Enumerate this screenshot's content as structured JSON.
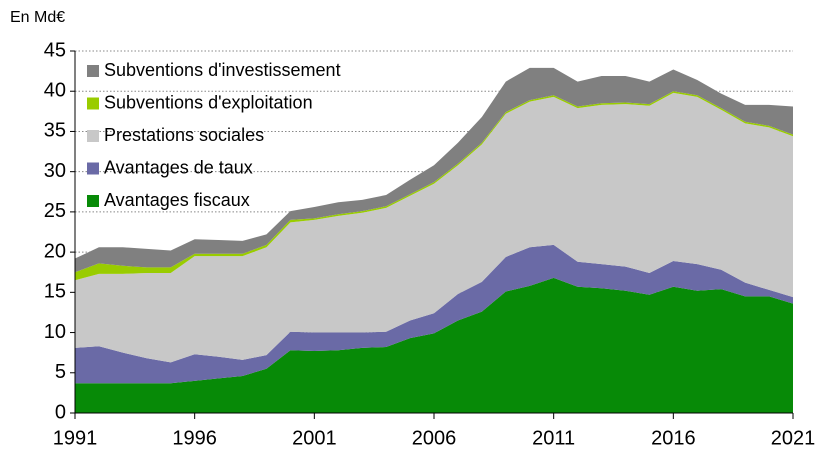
{
  "chart_data": {
    "type": "stacked_area",
    "y_label": "En Md€",
    "x": [
      1991,
      1992,
      1993,
      1994,
      1995,
      1996,
      1997,
      1998,
      1999,
      2000,
      2001,
      2002,
      2003,
      2004,
      2005,
      2006,
      2007,
      2008,
      2009,
      2010,
      2011,
      2012,
      2013,
      2014,
      2015,
      2016,
      2017,
      2018,
      2019,
      2020,
      2021
    ],
    "series": [
      {
        "name": "Avantages fiscaux",
        "color": "#078a07",
        "values": [
          3.7,
          3.7,
          3.7,
          3.7,
          3.7,
          4.0,
          4.3,
          4.6,
          5.5,
          7.8,
          7.7,
          7.8,
          8.1,
          8.2,
          9.3,
          9.9,
          11.5,
          12.6,
          15.1,
          15.8,
          16.8,
          15.7,
          15.5,
          15.2,
          14.7,
          15.7,
          15.2,
          15.4,
          14.5,
          14.5,
          13.6
        ]
      },
      {
        "name": "Avantages de taux",
        "color": "#6a6aa6",
        "values": [
          4.4,
          4.6,
          3.8,
          3.1,
          2.6,
          3.3,
          2.7,
          2.0,
          1.7,
          2.3,
          2.3,
          2.2,
          1.9,
          1.9,
          2.2,
          2.5,
          3.3,
          3.7,
          4.3,
          4.8,
          4.1,
          3.1,
          3.0,
          3.0,
          2.7,
          3.2,
          3.3,
          2.4,
          1.7,
          0.8,
          0.8
        ]
      },
      {
        "name": "Prestations sociales",
        "color": "#c8c8c8",
        "values": [
          8.4,
          9.0,
          9.8,
          10.6,
          11.1,
          12.2,
          12.5,
          12.9,
          13.4,
          13.6,
          14.0,
          14.5,
          14.9,
          15.4,
          15.5,
          16.1,
          16.0,
          17.1,
          17.8,
          18.1,
          18.4,
          19.1,
          19.8,
          20.2,
          20.8,
          20.9,
          20.8,
          19.9,
          19.8,
          20.2,
          20.0
        ]
      },
      {
        "name": "Subventions d'exploitation",
        "color": "#99cc00",
        "values": [
          1.0,
          1.3,
          1.0,
          0.7,
          0.7,
          0.3,
          0.3,
          0.3,
          0.3,
          0.3,
          0.2,
          0.2,
          0.2,
          0.2,
          0.2,
          0.2,
          0.2,
          0.2,
          0.2,
          0.2,
          0.2,
          0.2,
          0.2,
          0.2,
          0.2,
          0.2,
          0.2,
          0.2,
          0.2,
          0.2,
          0.2
        ]
      },
      {
        "name": "Subventions d'investissement",
        "color": "#808080",
        "values": [
          1.7,
          2.0,
          2.3,
          2.3,
          2.1,
          1.8,
          1.7,
          1.6,
          1.3,
          1.1,
          1.4,
          1.5,
          1.4,
          1.4,
          1.8,
          2.1,
          2.6,
          3.2,
          3.8,
          4.0,
          3.4,
          3.1,
          3.4,
          3.3,
          2.8,
          2.7,
          1.9,
          1.8,
          2.1,
          2.6,
          3.5
        ]
      }
    ],
    "xlim": [
      1991,
      2021
    ],
    "xticks": [
      1991,
      1996,
      2001,
      2006,
      2011,
      2016,
      2021
    ],
    "ylim": [
      0,
      45
    ],
    "yticks": [
      0,
      5,
      10,
      15,
      20,
      25,
      30,
      35,
      40,
      45
    ],
    "grid": true,
    "legend": "top-left"
  }
}
